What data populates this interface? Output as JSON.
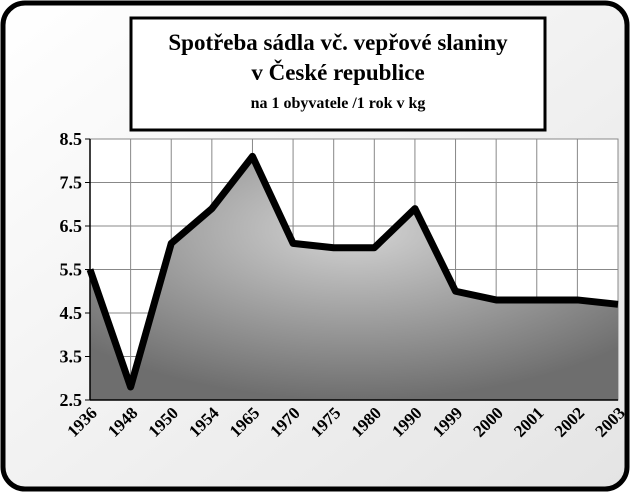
{
  "chart_data": {
    "type": "area",
    "title_lines": [
      "Spotřeba sádla vč. vepřové slaniny",
      "v České republice"
    ],
    "subtitle": "na 1 obyvatele /1 rok v kg",
    "categories": [
      "1936",
      "1948",
      "1950",
      "1954",
      "1965",
      "1970",
      "1975",
      "1980",
      "1990",
      "1999",
      "2000",
      "2001",
      "2002",
      "2003"
    ],
    "values": [
      5.5,
      2.8,
      6.1,
      6.9,
      8.1,
      6.1,
      6.0,
      6.0,
      6.9,
      5.0,
      4.8,
      4.8,
      4.8,
      4.7
    ],
    "color": "#000000",
    "ylim": [
      2.5,
      8.5
    ],
    "yticks": [
      2.5,
      3.5,
      4.5,
      5.5,
      6.5,
      7.5,
      8.5
    ],
    "grid": true
  }
}
